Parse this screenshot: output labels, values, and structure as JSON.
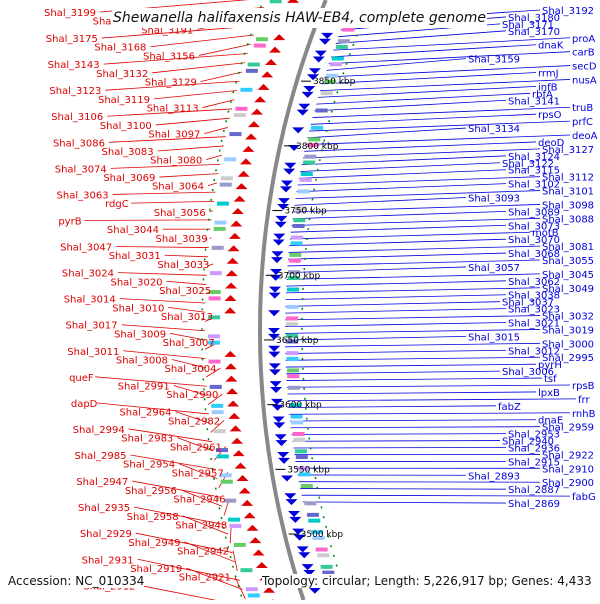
{
  "title": "Shewanella halifaxensis HAW-EB4, complete genome",
  "accession": "Accession: NC_010334",
  "topology": "Topology: circular; Length: 5,226,917 bp; Genes: 4,433",
  "colors": {
    "forward": "#0000dd",
    "reverse": "#dd0000",
    "backbone": "#888888",
    "tick": "#008800",
    "kbp_text": "#000000"
  },
  "kbp_ticks": [
    {
      "label": "3850 kbp",
      "value": 3850
    },
    {
      "label": "3800 kbp",
      "value": 3800
    },
    {
      "label": "3750 kbp",
      "value": 3750
    },
    {
      "label": "3700 kbp",
      "value": 3700
    },
    {
      "label": "3650 kbp",
      "value": 3650
    },
    {
      "label": "3600 kbp",
      "value": 3600
    },
    {
      "label": "3550 kbp",
      "value": 3550
    },
    {
      "label": "3500 kbp",
      "value": 3500
    }
  ],
  "left_labels": [
    "Shal_3199",
    "Shal_3194",
    "Shal_3191",
    "Shal_3175",
    "Shal_3168",
    "Shal_3156",
    "Shal_3143",
    "Shal_3132",
    "Shal_3129",
    "Shal_3123",
    "Shal_3119",
    "Shal_3113",
    "Shal_3106",
    "Shal_3100",
    "Shal_3097",
    "Shal_3086",
    "Shal_3083",
    "Shal_3080",
    "Shal_3074",
    "Shal_3069",
    "Shal_3064",
    "Shal_3063",
    "rdgC",
    "Shal_3056",
    "pyrB",
    "Shal_3044",
    "Shal_3039",
    "Shal_3047",
    "Shal_3031",
    "Shal_3033",
    "Shal_3024",
    "Shal_3020",
    "Shal_3025",
    "Shal_3014",
    "Shal_3010",
    "Shal_3013",
    "Shal_3017",
    "Shal_3009",
    "Shal_3007",
    "Shal_3011",
    "Shal_3008",
    "Shal_3004",
    "queF",
    "Shal_2991",
    "Shal_2990",
    "dapD",
    "Shal_2964",
    "Shal_2982",
    "Shal_2994",
    "Shal_2983",
    "Shal_2961",
    "Shal_2985",
    "Shal_2954",
    "Shal_2957",
    "Shal_2947",
    "Shal_2956",
    "Shal_2946",
    "Shal_2935",
    "Shal_2958",
    "Shal_2948",
    "Shal_2929",
    "Shal_2949",
    "Shal_2942",
    "Shal_2931",
    "Shal_2919",
    "Shal_2921",
    "Shal_2912"
  ],
  "right_labels": [
    "Shal_3192",
    "Shal_3180",
    "Shal_3171",
    "Shal_3170",
    "proA",
    "dnaK",
    "carB",
    "Shal_3159",
    "secD",
    "rrmJ",
    "nusA",
    "infB",
    "rbfA",
    "Shal_3141",
    "truB",
    "rpsO",
    "prfC",
    "Shal_3134",
    "deoA",
    "deoD",
    "Shal_3127",
    "Shal_3124",
    "Shal_3122",
    "Shal_3115",
    "Shal_3112",
    "Shal_3102",
    "Shal_3101",
    "Shal_3093",
    "Shal_3098",
    "Shal_3089",
    "Shal_3088",
    "Shal_3073",
    "motB",
    "Shal_3070",
    "Shal_3081",
    "Shal_3068",
    "Shal_3055",
    "Shal_3057",
    "Shal_3045",
    "Shal_3062",
    "Shal_3049",
    "Shal_3038",
    "Shal_3037",
    "Shal_3023",
    "Shal_3032",
    "Shal_3021",
    "Shal_3019",
    "Shal_3015",
    "Shal_3000",
    "Shal_3012",
    "Shal_2995",
    "pyrH",
    "Shal_3006",
    "tsf",
    "rpsB",
    "lpxB",
    "frr",
    "fabZ",
    "rnhB",
    "dnaE",
    "Shal_2959",
    "Shal_2953",
    "Shal_2940",
    "Shal_2936",
    "Shal_2922",
    "Shal_2915",
    "Shal_2910",
    "Shal_2893",
    "Shal_2900",
    "Shal_2887",
    "fabG",
    "Shal_2869"
  ]
}
